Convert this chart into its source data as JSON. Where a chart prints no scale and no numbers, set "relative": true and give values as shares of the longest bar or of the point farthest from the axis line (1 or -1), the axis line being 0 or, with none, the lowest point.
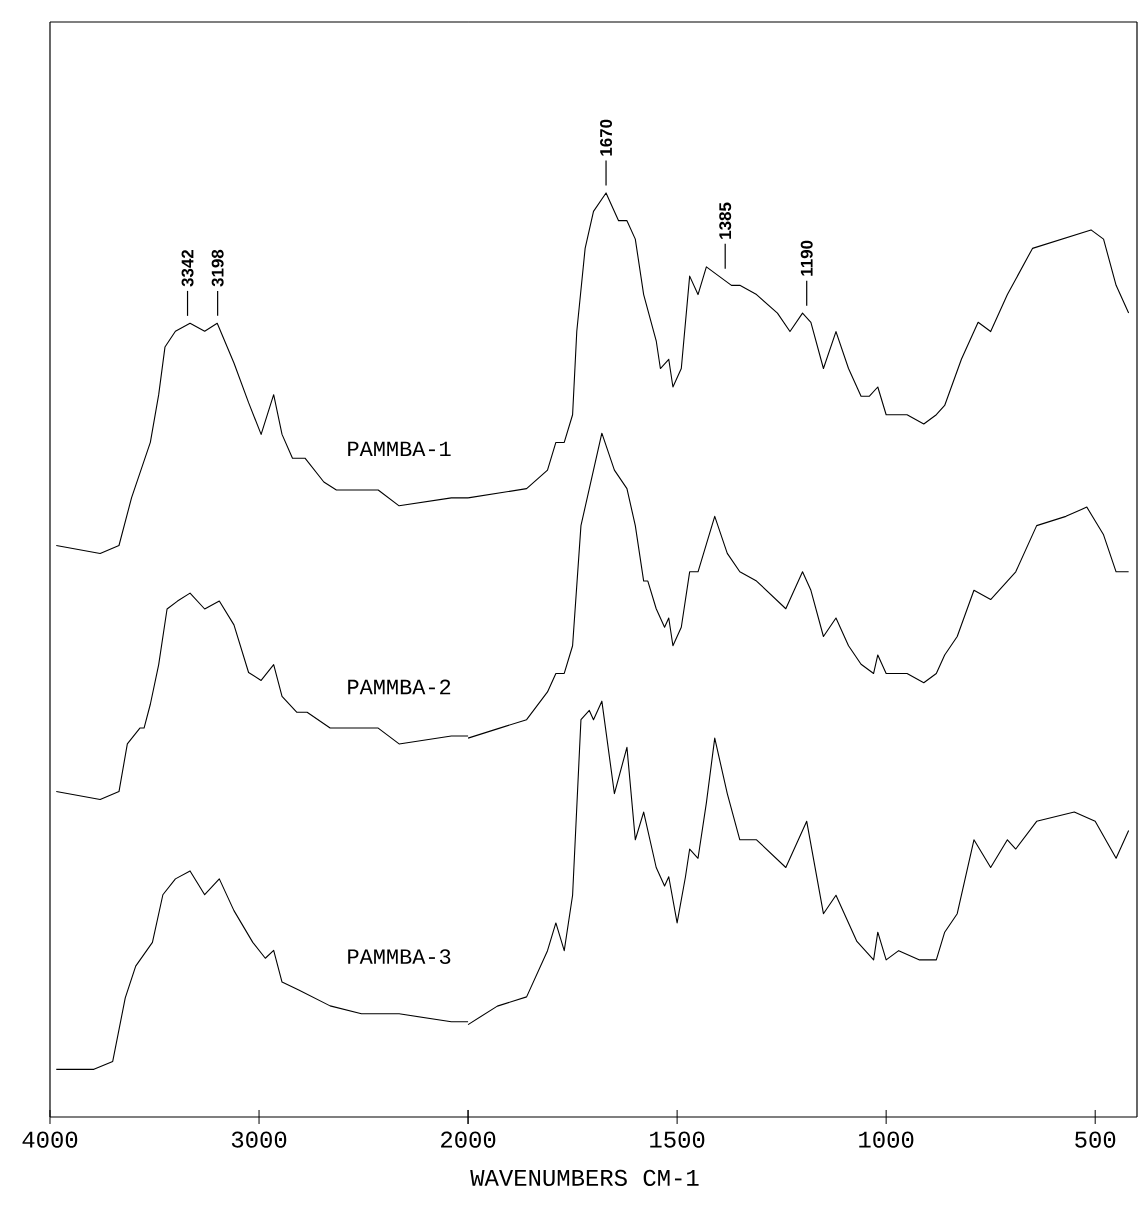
{
  "chart_data": [
    {
      "type": "line",
      "relative": true,
      "xlim": [
        4000,
        2000
      ],
      "xticks": [
        4000,
        3000,
        2000
      ],
      "annotations": [
        {
          "text": "3342",
          "x": 3342,
          "y": 1.0
        },
        {
          "text": "3198",
          "x": 3198,
          "y": 1.0
        }
      ],
      "series": [
        {
          "name": "PAMMBA-1",
          "color": "#000000",
          "x": [
            3970,
            3760,
            3670,
            3610,
            3520,
            3480,
            3450,
            3400,
            3330,
            3260,
            3200,
            3120,
            3050,
            2990,
            2930,
            2890,
            2840,
            2780,
            2690,
            2630,
            2510,
            2430,
            2330,
            2080,
            2000
          ],
          "values": [
            0.72,
            0.71,
            0.72,
            0.78,
            0.85,
            0.91,
            0.97,
            0.99,
            1.0,
            0.99,
            1.0,
            0.95,
            0.9,
            0.86,
            0.91,
            0.86,
            0.83,
            0.83,
            0.8,
            0.79,
            0.79,
            0.79,
            0.77,
            0.78,
            0.78
          ]
        },
        {
          "name": "PAMMBA-2",
          "color": "#000000",
          "x": [
            3970,
            3760,
            3670,
            3630,
            3570,
            3550,
            3520,
            3480,
            3440,
            3390,
            3330,
            3260,
            3190,
            3120,
            3050,
            2990,
            2930,
            2890,
            2820,
            2770,
            2660,
            2510,
            2430,
            2330,
            2080,
            2000
          ],
          "values": [
            0.41,
            0.4,
            0.41,
            0.47,
            0.49,
            0.49,
            0.52,
            0.57,
            0.64,
            0.65,
            0.66,
            0.64,
            0.65,
            0.62,
            0.56,
            0.55,
            0.57,
            0.53,
            0.51,
            0.51,
            0.49,
            0.49,
            0.49,
            0.47,
            0.48,
            0.48
          ]
        },
        {
          "name": "PAMMBA-3",
          "color": "#000000",
          "x": [
            3970,
            3790,
            3700,
            3640,
            3590,
            3510,
            3460,
            3400,
            3330,
            3260,
            3190,
            3120,
            3030,
            2970,
            2930,
            2890,
            2810,
            2660,
            2510,
            2430,
            2330,
            2080,
            2000
          ],
          "values": [
            0.06,
            0.06,
            0.07,
            0.15,
            0.19,
            0.22,
            0.28,
            0.3,
            0.31,
            0.28,
            0.3,
            0.26,
            0.22,
            0.2,
            0.21,
            0.17,
            0.16,
            0.14,
            0.13,
            0.13,
            0.13,
            0.12,
            0.12
          ]
        }
      ]
    },
    {
      "type": "line",
      "relative": true,
      "xlabel": "WAVENUMBERS CM-1",
      "xlim": [
        2000,
        400
      ],
      "xticks": [
        {
          "value": 2000,
          "label": null
        },
        1500,
        1000,
        500
      ],
      "annotations": [
        {
          "text": "1670",
          "x": 1670,
          "y": 1.0
        },
        {
          "text": "1385",
          "x": 1385,
          "y": 0.91
        },
        {
          "text": "1190",
          "x": 1190,
          "y": 0.87
        }
      ],
      "series": [
        {
          "color": "#000000",
          "x": [
            2000,
            1860,
            1810,
            1790,
            1770,
            1750,
            1740,
            1720,
            1700,
            1670,
            1640,
            1620,
            1600,
            1580,
            1550,
            1540,
            1520,
            1510,
            1490,
            1470,
            1450,
            1430,
            1400,
            1370,
            1350,
            1310,
            1260,
            1230,
            1200,
            1180,
            1150,
            1120,
            1090,
            1060,
            1040,
            1020,
            1000,
            950,
            910,
            880,
            860,
            820,
            780,
            750,
            710,
            650,
            580,
            510,
            480,
            450,
            420
          ],
          "values": [
            0.67,
            0.68,
            0.7,
            0.73,
            0.73,
            0.76,
            0.85,
            0.94,
            0.98,
            1.0,
            0.97,
            0.97,
            0.95,
            0.89,
            0.84,
            0.81,
            0.82,
            0.79,
            0.81,
            0.91,
            0.89,
            0.92,
            0.91,
            0.9,
            0.9,
            0.89,
            0.87,
            0.85,
            0.87,
            0.86,
            0.81,
            0.85,
            0.81,
            0.78,
            0.78,
            0.79,
            0.76,
            0.76,
            0.75,
            0.76,
            0.77,
            0.82,
            0.86,
            0.85,
            0.89,
            0.94,
            0.95,
            0.96,
            0.95,
            0.9,
            0.87
          ]
        },
        {
          "color": "#000000",
          "x": [
            2000,
            1930,
            1860,
            1810,
            1790,
            1770,
            1750,
            1730,
            1710,
            1680,
            1650,
            1620,
            1600,
            1580,
            1570,
            1550,
            1530,
            1520,
            1510,
            1490,
            1470,
            1450,
            1430,
            1410,
            1380,
            1350,
            1310,
            1240,
            1200,
            1180,
            1150,
            1120,
            1090,
            1060,
            1030,
            1020,
            1000,
            950,
            910,
            880,
            860,
            830,
            790,
            750,
            710,
            690,
            640,
            570,
            520,
            480,
            450,
            420
          ],
          "values": [
            0.41,
            0.42,
            0.43,
            0.46,
            0.48,
            0.48,
            0.51,
            0.64,
            0.68,
            0.74,
            0.7,
            0.68,
            0.64,
            0.58,
            0.58,
            0.55,
            0.53,
            0.54,
            0.51,
            0.53,
            0.59,
            0.59,
            0.62,
            0.65,
            0.61,
            0.59,
            0.58,
            0.55,
            0.59,
            0.57,
            0.52,
            0.54,
            0.51,
            0.49,
            0.48,
            0.5,
            0.48,
            0.48,
            0.47,
            0.48,
            0.5,
            0.52,
            0.57,
            0.56,
            0.58,
            0.59,
            0.64,
            0.65,
            0.66,
            0.63,
            0.59,
            0.59
          ]
        },
        {
          "color": "#000000",
          "x": [
            2000,
            1930,
            1860,
            1810,
            1790,
            1770,
            1750,
            1730,
            1710,
            1700,
            1680,
            1650,
            1620,
            1600,
            1580,
            1550,
            1530,
            1520,
            1500,
            1480,
            1470,
            1450,
            1430,
            1410,
            1380,
            1350,
            1310,
            1240,
            1190,
            1150,
            1120,
            1070,
            1030,
            1020,
            1000,
            970,
            920,
            880,
            860,
            830,
            790,
            750,
            710,
            690,
            640,
            550,
            500,
            450,
            420
          ],
          "values": [
            0.1,
            0.12,
            0.13,
            0.18,
            0.21,
            0.18,
            0.24,
            0.43,
            0.44,
            0.43,
            0.45,
            0.35,
            0.4,
            0.3,
            0.33,
            0.27,
            0.25,
            0.26,
            0.21,
            0.26,
            0.29,
            0.28,
            0.34,
            0.41,
            0.35,
            0.3,
            0.3,
            0.27,
            0.32,
            0.22,
            0.24,
            0.19,
            0.17,
            0.2,
            0.17,
            0.18,
            0.17,
            0.17,
            0.2,
            0.22,
            0.3,
            0.27,
            0.3,
            0.29,
            0.32,
            0.33,
            0.32,
            0.28,
            0.31
          ]
        }
      ]
    }
  ]
}
